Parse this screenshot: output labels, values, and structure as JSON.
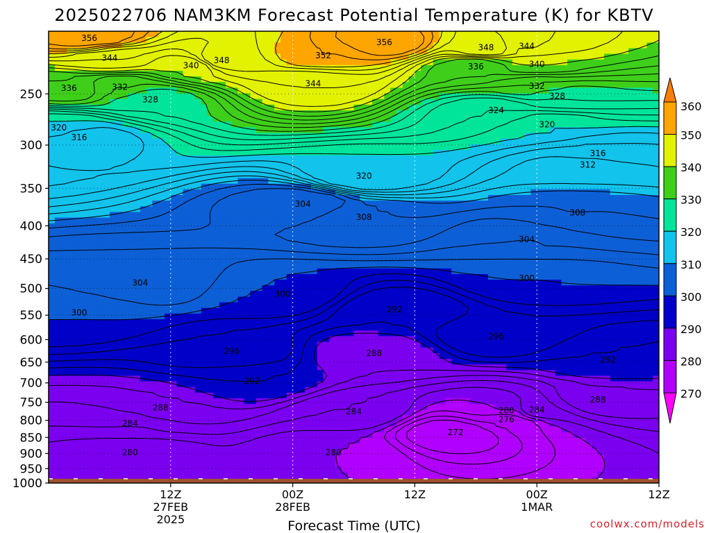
{
  "chart_data": {
    "type": "heatmap",
    "title": "2025022706 NAM3KM Forecast Potential Temperature (K) for KBTV",
    "xlabel": "Forecast Time (UTC)",
    "ylabel": "",
    "credit": "coolwx.com/models",
    "y_axis": {
      "scale": "log-pressure",
      "ticks": [
        250,
        300,
        350,
        400,
        450,
        500,
        550,
        600,
        650,
        700,
        750,
        800,
        850,
        900,
        950,
        1000
      ],
      "ylim": [
        1000,
        200
      ]
    },
    "x_axis": {
      "xlim": [
        -6,
        54
      ],
      "ticks": [
        {
          "hour": 6,
          "lines": [
            "12Z",
            "27FEB",
            "2025"
          ]
        },
        {
          "hour": 18,
          "lines": [
            "00Z",
            "28FEB"
          ]
        },
        {
          "hour": 30,
          "lines": [
            "12Z"
          ]
        },
        {
          "hour": 42,
          "lines": [
            "00Z",
            "1MAR"
          ]
        },
        {
          "hour": 54,
          "lines": [
            "12Z"
          ]
        }
      ]
    },
    "colorbar": {
      "levels": [
        270,
        280,
        290,
        300,
        310,
        320,
        330,
        340,
        350,
        360
      ],
      "colors": [
        "#ff00ff",
        "#b000ff",
        "#7b00f0",
        "#0000c8",
        "#0d5fd6",
        "#12c3ec",
        "#00e59a",
        "#3fcf1a",
        "#e3f200",
        "#ffa500",
        "#ff7d00"
      ]
    },
    "ground_color": "#a0522d",
    "contour_interval": 2,
    "contour_labels": [
      {
        "hour": -2,
        "p": 205,
        "value": 356
      },
      {
        "hour": 0,
        "p": 220,
        "value": 344
      },
      {
        "hour": -4,
        "p": 245,
        "value": 336
      },
      {
        "hour": 1,
        "p": 244,
        "value": 332
      },
      {
        "hour": 8,
        "p": 226,
        "value": 340
      },
      {
        "hour": 11,
        "p": 222,
        "value": 348
      },
      {
        "hour": 4,
        "p": 255,
        "value": 328
      },
      {
        "hour": 21,
        "p": 218,
        "value": 352
      },
      {
        "hour": 20,
        "p": 241,
        "value": 344
      },
      {
        "hour": 27,
        "p": 208,
        "value": 356
      },
      {
        "hour": 37,
        "p": 212,
        "value": 348
      },
      {
        "hour": 41,
        "p": 211,
        "value": 344
      },
      {
        "hour": 36,
        "p": 227,
        "value": 336
      },
      {
        "hour": 42,
        "p": 225,
        "value": 340
      },
      {
        "hour": 42,
        "p": 243,
        "value": 332
      },
      {
        "hour": 44,
        "p": 252,
        "value": 328
      },
      {
        "hour": 38,
        "p": 265,
        "value": 324
      },
      {
        "hour": 43,
        "p": 279,
        "value": 320
      },
      {
        "hour": -5,
        "p": 282,
        "value": 320
      },
      {
        "hour": -3,
        "p": 292,
        "value": 316
      },
      {
        "hour": 48,
        "p": 309,
        "value": 316
      },
      {
        "hour": 47,
        "p": 322,
        "value": 312
      },
      {
        "hour": 25,
        "p": 335,
        "value": 320
      },
      {
        "hour": 19,
        "p": 370,
        "value": 304
      },
      {
        "hour": 25,
        "p": 388,
        "value": 308
      },
      {
        "hour": 46,
        "p": 382,
        "value": 308
      },
      {
        "hour": 41,
        "p": 420,
        "value": 304
      },
      {
        "hour": 3,
        "p": 490,
        "value": 304
      },
      {
        "hour": 41,
        "p": 482,
        "value": 300
      },
      {
        "hour": -3,
        "p": 545,
        "value": 300
      },
      {
        "hour": 17,
        "p": 510,
        "value": 300
      },
      {
        "hour": 28,
        "p": 539,
        "value": 292
      },
      {
        "hour": 38,
        "p": 593,
        "value": 296
      },
      {
        "hour": 12,
        "p": 625,
        "value": 296
      },
      {
        "hour": 26,
        "p": 630,
        "value": 288
      },
      {
        "hour": 49,
        "p": 645,
        "value": 292
      },
      {
        "hour": 14,
        "p": 695,
        "value": 292
      },
      {
        "hour": 48,
        "p": 743,
        "value": 288
      },
      {
        "hour": 5,
        "p": 765,
        "value": 288
      },
      {
        "hour": 2,
        "p": 808,
        "value": 284
      },
      {
        "hour": 24,
        "p": 775,
        "value": 284
      },
      {
        "hour": 39,
        "p": 772,
        "value": 280
      },
      {
        "hour": 42,
        "p": 770,
        "value": 284
      },
      {
        "hour": 39,
        "p": 798,
        "value": 276
      },
      {
        "hour": 34,
        "p": 835,
        "value": 272
      },
      {
        "hour": 2,
        "p": 897,
        "value": 280
      },
      {
        "hour": 22,
        "p": 897,
        "value": 280
      }
    ]
  }
}
